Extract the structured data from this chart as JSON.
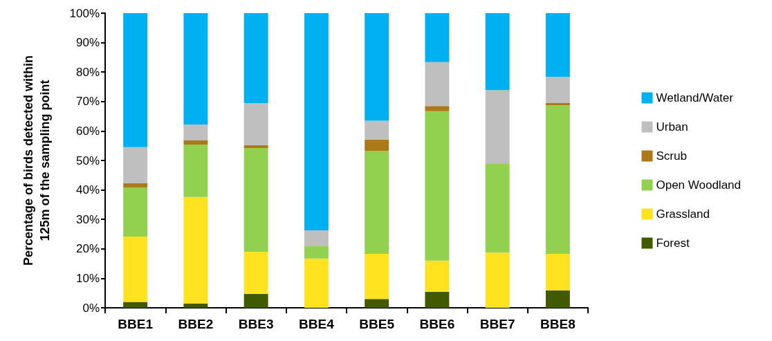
{
  "chart_data": {
    "type": "bar",
    "stacked": true,
    "ylabel": "Percentage of birds detected within\n125m of the sampling point",
    "categories": [
      "BBE1",
      "BBE2",
      "BBE3",
      "BBE4",
      "BBE5",
      "BBE6",
      "BBE7",
      "BBE8"
    ],
    "series": [
      {
        "name": "Forest",
        "color": "#415a00",
        "values": [
          2,
          1.4,
          4.7,
          0,
          3,
          5.4,
          0,
          5.9
        ]
      },
      {
        "name": "Grassland",
        "color": "#ffe220",
        "values": [
          22.2,
          36.2,
          14.3,
          16.7,
          15.3,
          10.6,
          18.7,
          12.4
        ]
      },
      {
        "name": "Open Woodland",
        "color": "#92d050",
        "values": [
          16.6,
          17.8,
          35.2,
          4.2,
          35,
          50.7,
          30.1,
          50.5
        ]
      },
      {
        "name": "Scrub",
        "color": "#ad7817",
        "values": [
          1.5,
          1.4,
          1,
          0,
          3.8,
          1.8,
          0,
          0.7
        ]
      },
      {
        "name": "Urban",
        "color": "#bfbfbf",
        "values": [
          12.2,
          5.4,
          14.3,
          5.4,
          6.4,
          14.9,
          25.1,
          8.9
        ]
      },
      {
        "name": "Wetland/Water",
        "color": "#00b0f0",
        "values": [
          45.5,
          37.8,
          30.5,
          73.7,
          36.5,
          16.6,
          26.1,
          21.6
        ]
      }
    ],
    "ylim": [
      0,
      100
    ],
    "yticks": [
      {
        "value": 0,
        "label": "0%"
      },
      {
        "value": 10,
        "label": "10%"
      },
      {
        "value": 20,
        "label": "20%"
      },
      {
        "value": 30,
        "label": "30%"
      },
      {
        "value": 40,
        "label": "40%"
      },
      {
        "value": 50,
        "label": "50%"
      },
      {
        "value": 60,
        "label": "60%"
      },
      {
        "value": 70,
        "label": "70%"
      },
      {
        "value": 80,
        "label": "80%"
      },
      {
        "value": 90,
        "label": "90%"
      },
      {
        "value": 100,
        "label": "100%"
      }
    ],
    "grid": false,
    "legend": "right"
  }
}
